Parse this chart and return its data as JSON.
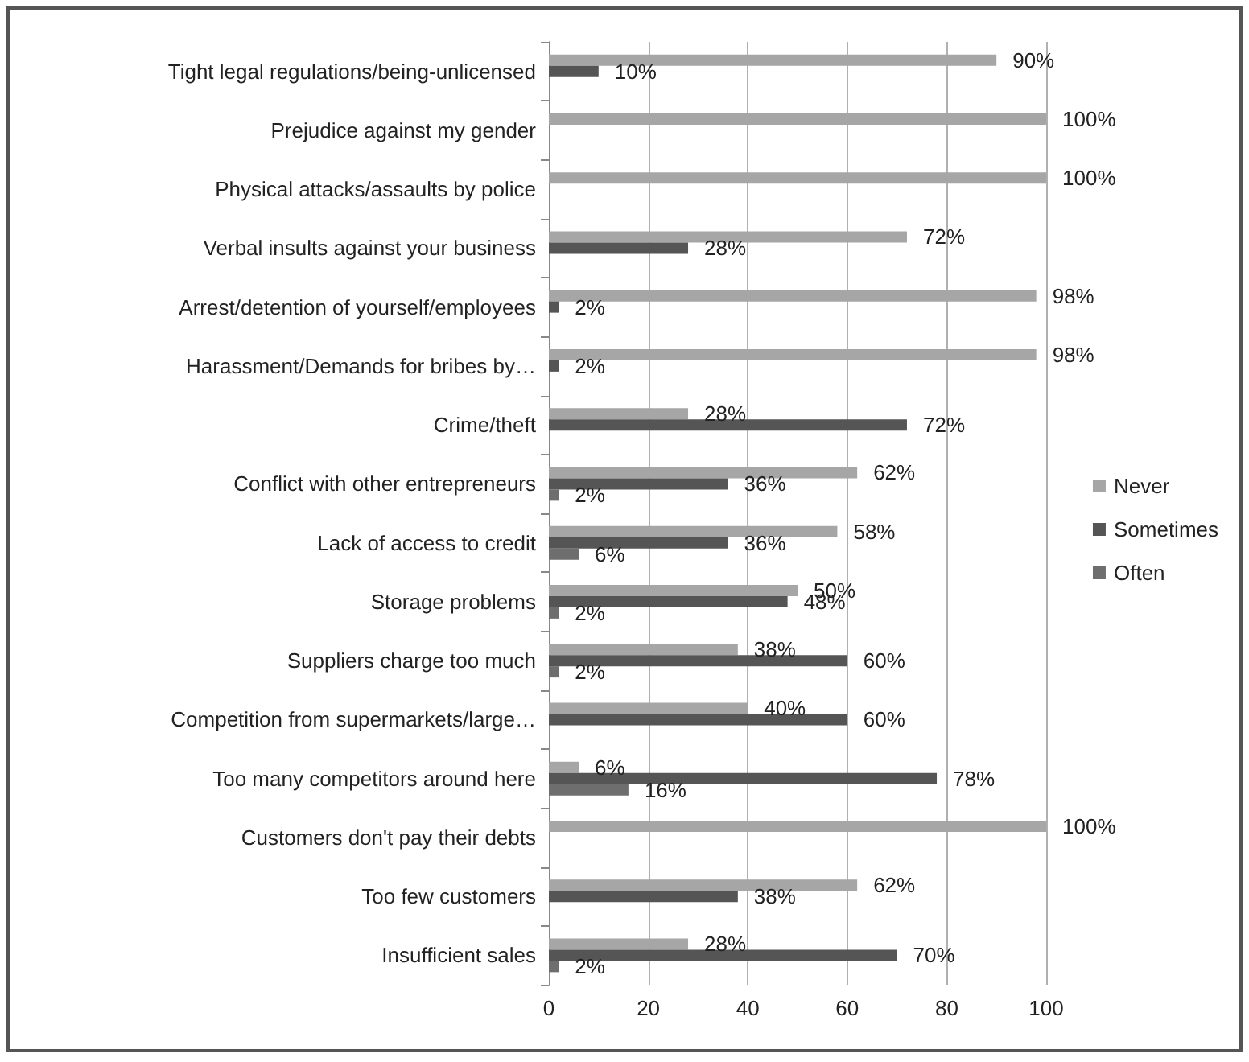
{
  "chart_data": {
    "type": "bar",
    "orientation": "horizontal",
    "categories": [
      "Tight legal regulations/being-unlicensed",
      "Prejudice against my gender",
      "Physical attacks/assaults by police",
      "Verbal insults against your business",
      "Arrest/detention of yourself/employees",
      "Harassment/Demands for bribes by…",
      "Crime/theft",
      "Conflict with other entrepreneurs",
      "Lack of access to credit",
      "Storage problems",
      "Suppliers charge too much",
      "Competition from supermarkets/large…",
      "Too many competitors around here",
      "Customers don't pay their debts",
      "Too few customers",
      "Insufficient sales"
    ],
    "series": [
      {
        "name": "Never",
        "color": "#a6a6a6",
        "values": [
          90,
          100,
          100,
          72,
          98,
          98,
          28,
          62,
          58,
          50,
          38,
          40,
          6,
          100,
          62,
          28
        ],
        "value_labels": [
          "90%",
          "100%",
          "100%",
          "72%",
          "98%",
          "98%",
          "28%",
          "62%",
          "58%",
          "50%",
          "38%",
          "40%",
          "6%",
          "100%",
          "62%",
          "28%"
        ]
      },
      {
        "name": "Sometimes",
        "color": "#555555",
        "values": [
          10,
          0,
          0,
          28,
          2,
          2,
          72,
          36,
          36,
          48,
          60,
          60,
          78,
          0,
          38,
          70
        ],
        "value_labels": [
          "10%",
          null,
          null,
          "28%",
          "2%",
          "2%",
          "72%",
          "36%",
          "36%",
          "48%",
          "60%",
          "60%",
          "78%",
          null,
          "38%",
          "70%"
        ]
      },
      {
        "name": "Often",
        "color": "#6e6e6e",
        "values": [
          0,
          0,
          0,
          0,
          0,
          0,
          0,
          2,
          6,
          2,
          2,
          0,
          16,
          0,
          0,
          2
        ],
        "value_labels": [
          null,
          null,
          null,
          null,
          null,
          null,
          null,
          "2%",
          "6%",
          "2%",
          "2%",
          null,
          "16%",
          null,
          null,
          "2%"
        ]
      }
    ],
    "xlim": [
      0,
      100
    ],
    "xticks": [
      0,
      20,
      40,
      60,
      80,
      100
    ],
    "grid": "x",
    "legend": "right"
  }
}
